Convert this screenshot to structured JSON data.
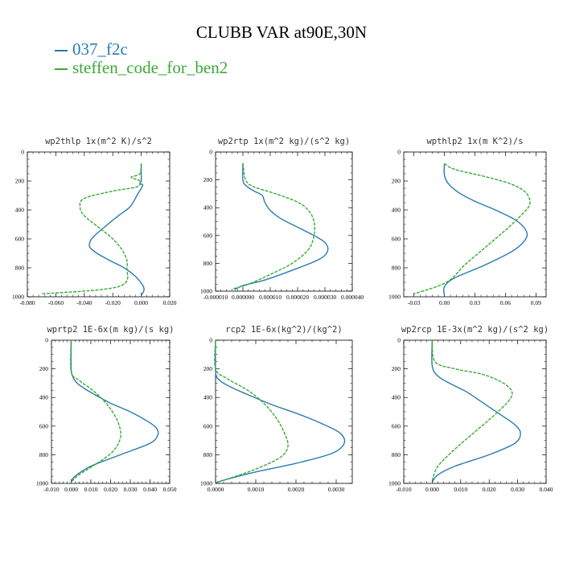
{
  "figure": {
    "title": "CLUBB VAR at90E,30N",
    "legend": [
      {
        "label": "037_f2c",
        "color": "#2a7ab0"
      },
      {
        "label": "steffen_code_for_ben2",
        "color": "#3aaa35"
      }
    ]
  },
  "chart_data": [
    {
      "type": "line",
      "title": "wp2thlp   1x(m^2 K)/s^2",
      "xlim": [
        -0.08,
        0.02
      ],
      "ylim": [
        1000,
        0
      ],
      "xticks": [
        "-0.080",
        "-0.060",
        "-0.040",
        "-0.020",
        "0.000",
        "0.020"
      ],
      "xtick_values": [
        -0.08,
        -0.06,
        -0.04,
        -0.02,
        0.0,
        0.02
      ],
      "yticks": [
        "0",
        "200",
        "400",
        "600",
        "800",
        "1000"
      ],
      "ytick_values": [
        0,
        200,
        400,
        600,
        "800",
        1000
      ],
      "grid": false,
      "series": [
        {
          "name": "037_f2c",
          "color": "#2a7ab0",
          "x": [
            0.0,
            0.0,
            0.0,
            -0.001,
            0.001,
            -0.003,
            -0.008,
            -0.016,
            -0.026,
            -0.033,
            -0.036,
            -0.036,
            -0.031,
            -0.022,
            -0.012,
            -0.004,
            0.001,
            0.002,
            0.001,
            0.0
          ],
          "y": [
            80,
            150,
            200,
            220,
            230,
            300,
            380,
            440,
            520,
            580,
            620,
            660,
            700,
            750,
            800,
            860,
            920,
            950,
            975,
            990
          ]
        },
        {
          "name": "steffen_code_for_ben2",
          "color": "#3aaa35",
          "x": [
            0.0,
            -0.001,
            -0.007,
            -0.001,
            -0.003,
            -0.02,
            -0.04,
            -0.043,
            -0.04,
            -0.03,
            -0.02,
            -0.012,
            -0.01,
            -0.016,
            -0.07
          ],
          "y": [
            80,
            150,
            175,
            200,
            240,
            270,
            320,
            380,
            440,
            520,
            600,
            700,
            800,
            930,
            980
          ]
        }
      ]
    },
    {
      "type": "line",
      "title": "wp2rtp   1x(m^2 kg)/(s^2 kg)",
      "xlim": [
        -1e-05,
        4e-05
      ],
      "ylim": [
        1000,
        0
      ],
      "xticks": [
        "-0.000010",
        "0.000000",
        "0.000010",
        "0.000020",
        "0.000030",
        "0.000040"
      ],
      "xtick_values": [
        -1e-05,
        0.0,
        1e-05,
        2e-05,
        3e-05,
        4e-05
      ],
      "yticks": [
        "0",
        "200",
        "400",
        "600",
        "800",
        "1000"
      ],
      "ytick_values": [
        0,
        200,
        400,
        600,
        800,
        1000
      ],
      "grid": false,
      "series": [
        {
          "name": "037_f2c",
          "color": "#2a7ab0",
          "x": [
            0.0,
            0.0,
            1e-06,
            4e-06,
            7e-06,
            8e-06,
            1e-05,
            1.4e-05,
            2e-05,
            2.6e-05,
            3e-05,
            3.1e-05,
            2.8e-05,
            1.8e-05,
            8e-06,
            0.0,
            -3e-06
          ],
          "y": [
            80,
            200,
            240,
            280,
            310,
            360,
            420,
            480,
            540,
            600,
            650,
            710,
            770,
            850,
            920,
            960,
            990
          ]
        },
        {
          "name": "steffen_code_for_ben2",
          "color": "#3aaa35",
          "x": [
            0.0,
            1e-06,
            4e-06,
            1.2e-05,
            2e-05,
            2.4e-05,
            2.6e-05,
            2.6e-05,
            2.4e-05,
            1.8e-05,
            1e-05,
            2e-06,
            -4e-06
          ],
          "y": [
            80,
            200,
            250,
            300,
            360,
            420,
            500,
            600,
            700,
            800,
            880,
            950,
            985
          ]
        }
      ]
    },
    {
      "type": "line",
      "title": "wpthlp2   1x(m K^2)/s",
      "xlim": [
        -0.04,
        0.1
      ],
      "ylim": [
        1000,
        0
      ],
      "xticks": [
        "-0.03",
        "0.00",
        "0.03",
        "0.06",
        "0.09"
      ],
      "xtick_values": [
        -0.03,
        0.0,
        0.03,
        0.06,
        0.09
      ],
      "yticks": [
        "0",
        "200",
        "400",
        "600",
        "800",
        "1000"
      ],
      "ytick_values": [
        0,
        200,
        400,
        600,
        800,
        1000
      ],
      "grid": false,
      "series": [
        {
          "name": "037_f2c",
          "color": "#2a7ab0",
          "x": [
            0.0,
            0.0,
            0.004,
            0.014,
            0.03,
            0.05,
            0.07,
            0.08,
            0.08,
            0.068,
            0.04,
            0.01,
            0.0,
            0.0
          ],
          "y": [
            80,
            160,
            220,
            280,
            340,
            400,
            470,
            540,
            600,
            680,
            780,
            870,
            930,
            990
          ]
        },
        {
          "name": "steffen_code_for_ben2",
          "color": "#3aaa35",
          "x": [
            0.0,
            0.01,
            0.04,
            0.065,
            0.08,
            0.084,
            0.075,
            0.06,
            0.04,
            0.02,
            0.002,
            -0.03
          ],
          "y": [
            80,
            120,
            170,
            220,
            280,
            360,
            440,
            540,
            660,
            780,
            900,
            980
          ]
        }
      ]
    },
    {
      "type": "line",
      "title": "wprtp2   1E-6x(m kg)/(s kg)",
      "xlim": [
        -0.01,
        0.05
      ],
      "ylim": [
        1000,
        0
      ],
      "xticks": [
        "-0.010",
        "0.000",
        "0.010",
        "0.020",
        "0.030",
        "0.040",
        "0.050"
      ],
      "xtick_values": [
        -0.01,
        0.0,
        0.01,
        0.02,
        0.03,
        0.04,
        0.05
      ],
      "yticks": [
        "0",
        "200",
        "400",
        "600",
        "800",
        "1000"
      ],
      "ytick_values": [
        0,
        200,
        400,
        600,
        800,
        1000
      ],
      "grid": false,
      "series": [
        {
          "name": "037_f2c",
          "color": "#2a7ab0",
          "x": [
            0.0,
            0.0,
            0.001,
            0.003,
            0.007,
            0.012,
            0.02,
            0.03,
            0.038,
            0.043,
            0.044,
            0.04,
            0.025,
            0.01,
            0.002,
            0.0
          ],
          "y": [
            0,
            200,
            260,
            300,
            340,
            380,
            440,
            500,
            560,
            610,
            660,
            720,
            800,
            880,
            950,
            990
          ]
        },
        {
          "name": "steffen_code_for_ben2",
          "color": "#3aaa35",
          "x": [
            0.0,
            0.0,
            0.004,
            0.01,
            0.015,
            0.02,
            0.024,
            0.025,
            0.021,
            0.012,
            0.004,
            0.0
          ],
          "y": [
            0,
            220,
            280,
            340,
            400,
            480,
            580,
            680,
            780,
            870,
            940,
            990
          ]
        }
      ]
    },
    {
      "type": "line",
      "title": "rcp2   1E-6x(kg^2)/(kg^2)",
      "xlim": [
        0.0,
        0.0034
      ],
      "ylim": [
        1000,
        0
      ],
      "xticks": [
        "0.0000",
        "0.0010",
        "0.0020",
        "0.0030"
      ],
      "xtick_values": [
        0.0,
        0.001,
        0.002,
        0.003
      ],
      "yticks": [
        "0",
        "200",
        "400",
        "600",
        "800",
        "1000"
      ],
      "ytick_values": [
        0,
        200,
        400,
        600,
        800,
        1000
      ],
      "grid": false,
      "series": [
        {
          "name": "037_f2c",
          "color": "#2a7ab0",
          "x": [
            0.0,
            0.0,
            0.0001,
            0.0004,
            0.0008,
            0.0014,
            0.0021,
            0.0027,
            0.0031,
            0.0032,
            0.0029,
            0.002,
            0.001,
            0.0003,
            0.0
          ],
          "y": [
            0,
            220,
            280,
            330,
            380,
            450,
            520,
            590,
            650,
            720,
            790,
            860,
            920,
            970,
            995
          ]
        },
        {
          "name": "steffen_code_for_ben2",
          "color": "#3aaa35",
          "x": [
            0.0,
            0.0,
            0.0003,
            0.0008,
            0.0012,
            0.0015,
            0.0017,
            0.0018,
            0.0016,
            0.001,
            0.0004,
            0.0
          ],
          "y": [
            0,
            200,
            270,
            350,
            440,
            540,
            640,
            740,
            820,
            900,
            960,
            995
          ]
        }
      ]
    },
    {
      "type": "line",
      "title": "wp2rcp   1E-3x(m^2 kg)/(s^2 kg)",
      "xlim": [
        -0.01,
        0.04
      ],
      "ylim": [
        1000,
        0
      ],
      "xticks": [
        "-0.010",
        "0.000",
        "0.010",
        "0.020",
        "0.030",
        "0.040"
      ],
      "xtick_values": [
        -0.01,
        0.0,
        0.01,
        0.02,
        0.03,
        0.04
      ],
      "yticks": [
        "0",
        "200",
        "400",
        "600",
        "800",
        "1000"
      ],
      "ytick_values": [
        0,
        200,
        400,
        600,
        800,
        1000
      ],
      "grid": false,
      "series": [
        {
          "name": "037_f2c",
          "color": "#2a7ab0",
          "x": [
            0.0,
            0.0,
            0.002,
            0.006,
            0.012,
            0.018,
            0.024,
            0.029,
            0.031,
            0.029,
            0.02,
            0.008,
            0.002,
            0.0
          ],
          "y": [
            0,
            180,
            250,
            300,
            360,
            440,
            520,
            590,
            650,
            720,
            800,
            880,
            940,
            990
          ]
        },
        {
          "name": "steffen_code_for_ben2",
          "color": "#3aaa35",
          "x": [
            0.0,
            0.001,
            0.008,
            0.018,
            0.025,
            0.028,
            0.027,
            0.022,
            0.015,
            0.008,
            0.002,
            0.0
          ],
          "y": [
            0,
            150,
            200,
            240,
            300,
            360,
            420,
            520,
            640,
            760,
            880,
            980
          ]
        }
      ]
    }
  ]
}
